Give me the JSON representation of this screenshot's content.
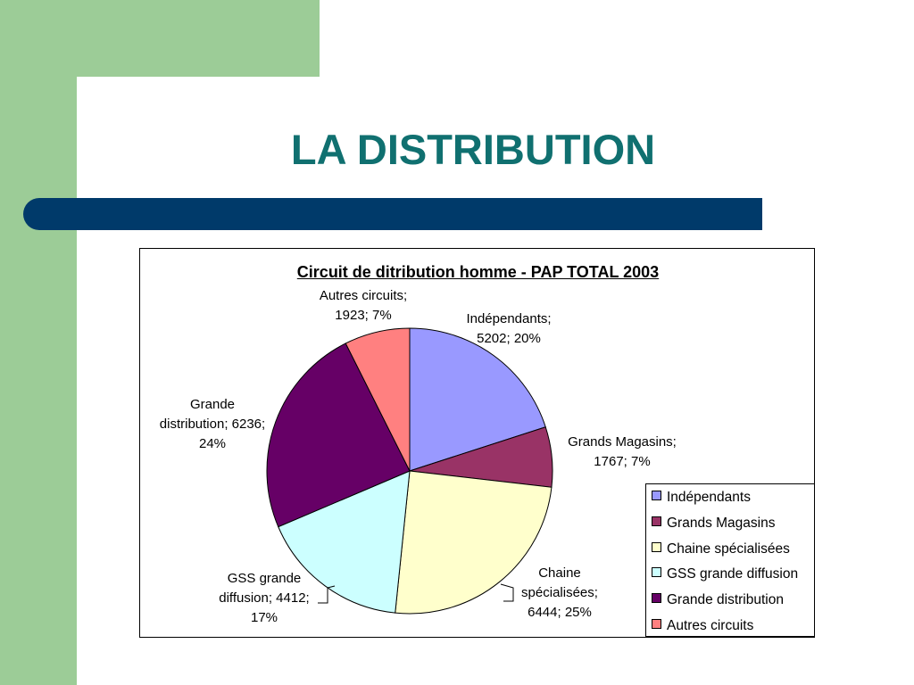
{
  "slide": {
    "title": "LA DISTRIBUTION",
    "colors": {
      "accent_green": "#9ccc97",
      "bar_navy": "#003a6a",
      "title_teal": "#107070"
    }
  },
  "chart_data": {
    "type": "pie",
    "title": "Circuit de ditribution homme - PAP TOTAL 2003",
    "legend_position": "right-bottom",
    "slices": [
      {
        "name": "Indépendants",
        "value": 5202,
        "percent": 20,
        "color": "#9999ff",
        "label_lines": [
          "Indépendants;",
          "5202; 20%"
        ]
      },
      {
        "name": "Grands Magasins",
        "value": 1767,
        "percent": 7,
        "color": "#993366",
        "label_lines": [
          "Grands Magasins;",
          "1767; 7%"
        ]
      },
      {
        "name": "Chaine spécialisées",
        "value": 6444,
        "percent": 25,
        "color": "#ffffcc",
        "label_lines": [
          "Chaine",
          "spécialisées;",
          "6444; 25%"
        ]
      },
      {
        "name": "GSS grande diffusion",
        "value": 4412,
        "percent": 17,
        "color": "#ccffff",
        "label_lines": [
          "GSS grande",
          "diffusion; 4412;",
          "17%"
        ]
      },
      {
        "name": "Grande distribution",
        "value": 6236,
        "percent": 24,
        "color": "#660066",
        "label_lines": [
          "Grande",
          "distribution; 6236;",
          "24%"
        ]
      },
      {
        "name": "Autres circuits",
        "value": 1923,
        "percent": 7,
        "color": "#ff8080",
        "label_lines": [
          "Autres circuits;",
          "1923; 7%"
        ]
      }
    ]
  }
}
